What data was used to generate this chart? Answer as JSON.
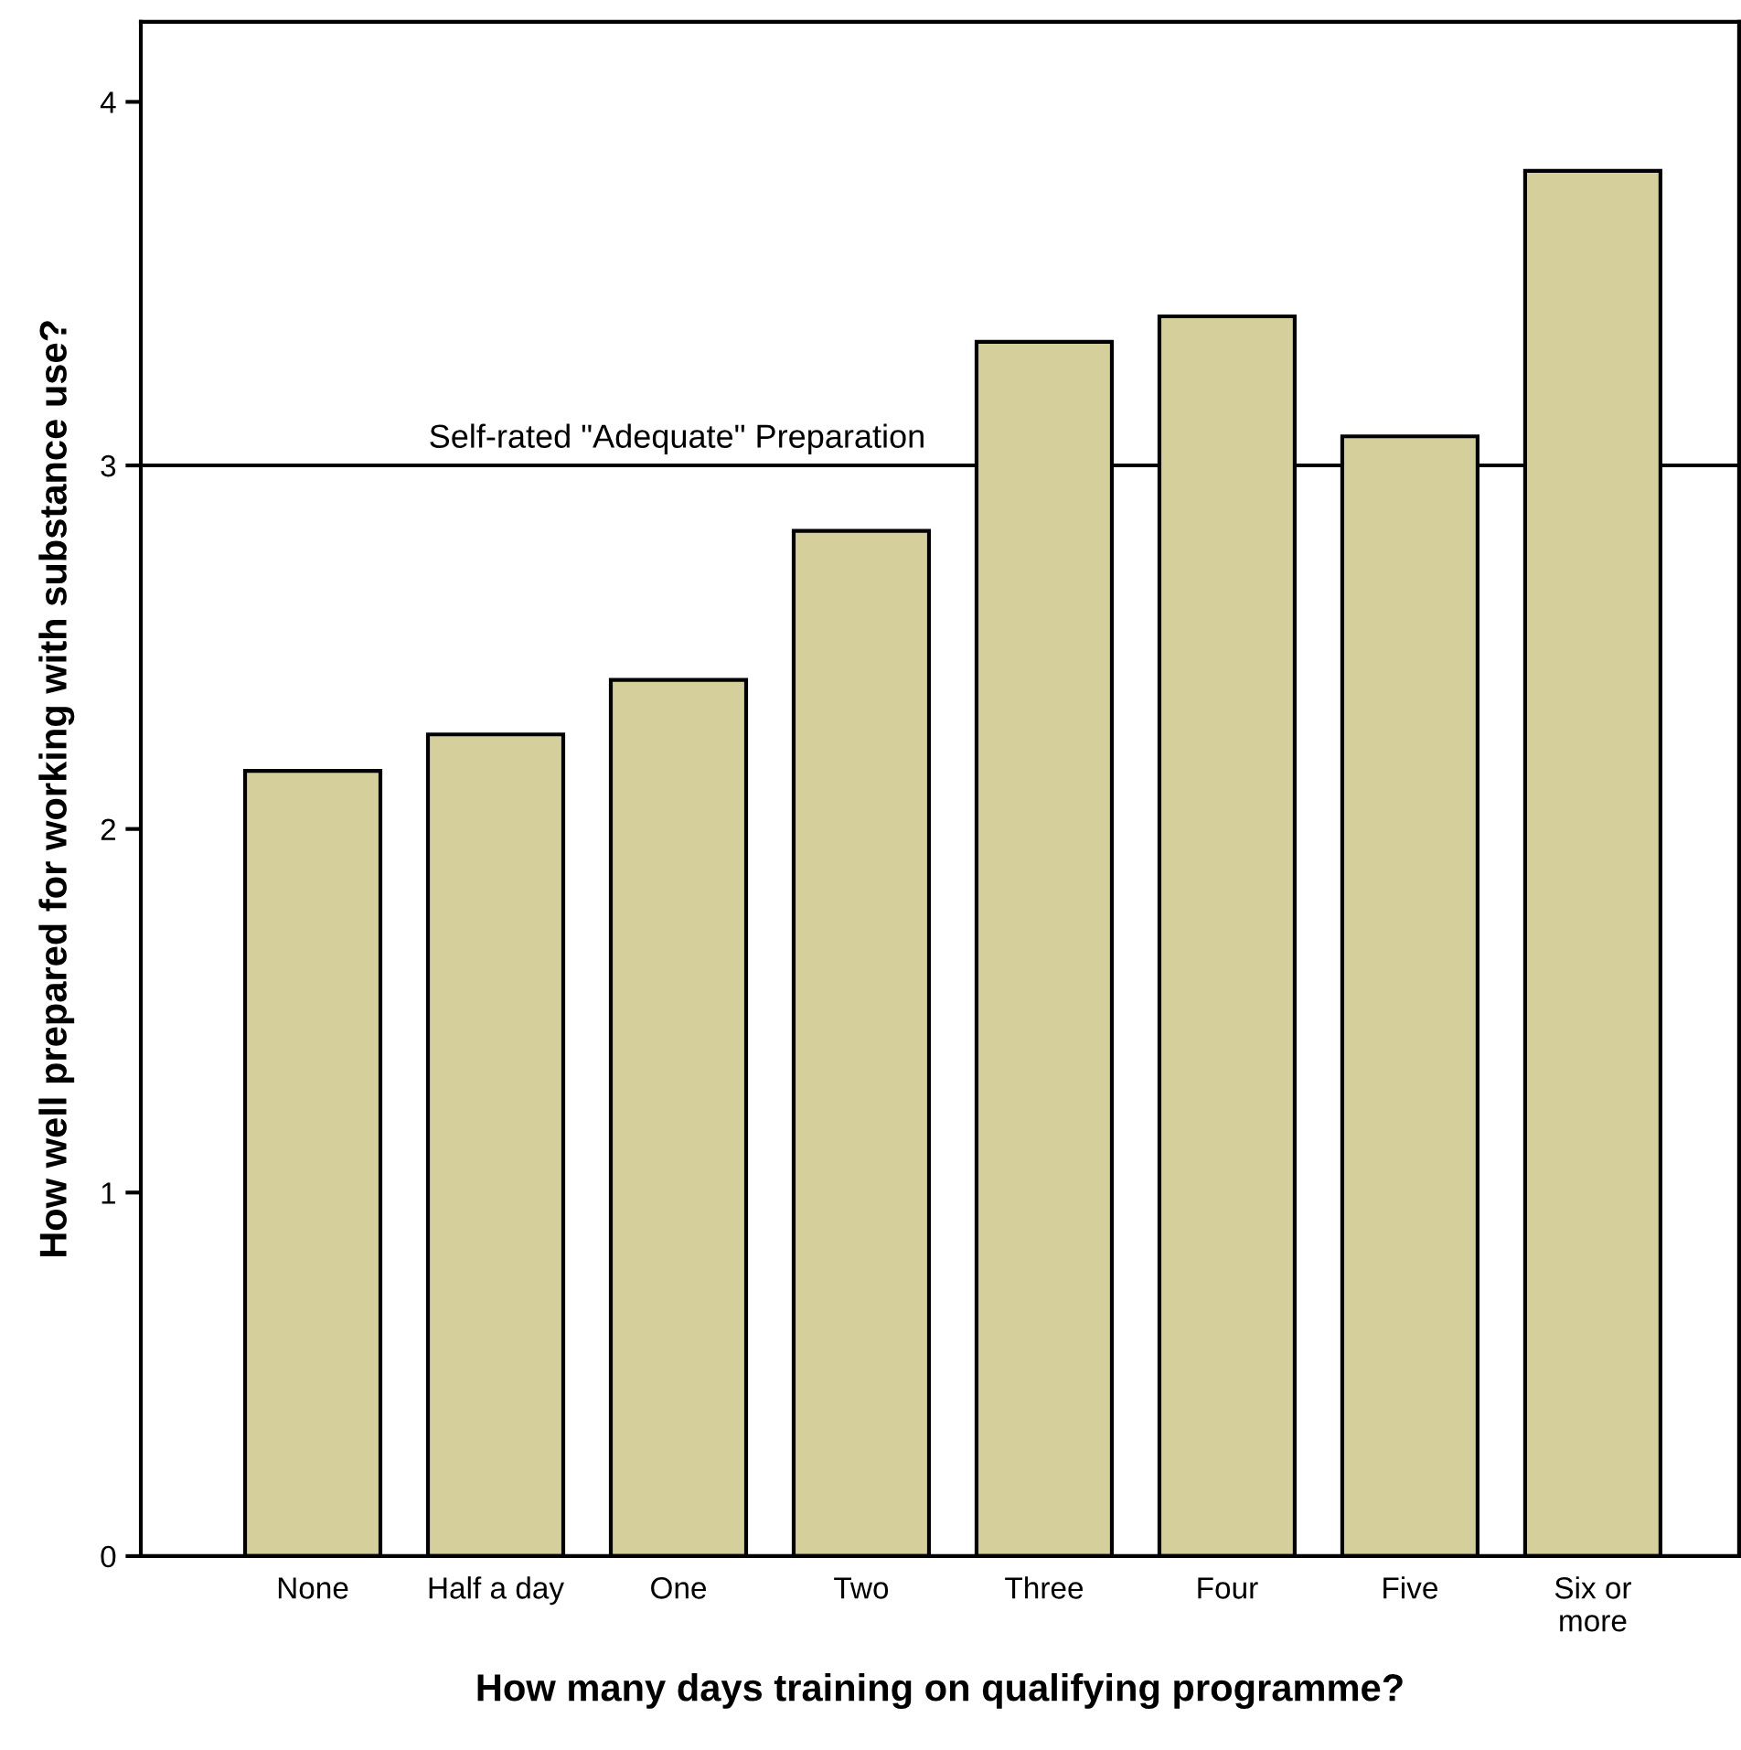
{
  "chart_data": {
    "type": "bar",
    "xlabel": "How many days training on qualifying programme?",
    "ylabel": "How well prepared for working with substance use?",
    "categories": [
      "None",
      "Half a day",
      "One",
      "Two",
      "Three",
      "Four",
      "Five",
      "Six or\nmore"
    ],
    "values": [
      2.16,
      2.26,
      2.41,
      2.82,
      3.34,
      3.41,
      3.08,
      3.81
    ],
    "color": "#d4cf9b",
    "ylim": [
      0,
      4.22
    ],
    "yticks": [
      0,
      1,
      2,
      3,
      4
    ],
    "ref_lines": [
      {
        "axis": "y",
        "value": 3,
        "label": "Self-rated \"Adequate\" Preparation",
        "color": "#000000",
        "line_style": "solid"
      }
    ],
    "grid": false,
    "legend": false
  }
}
